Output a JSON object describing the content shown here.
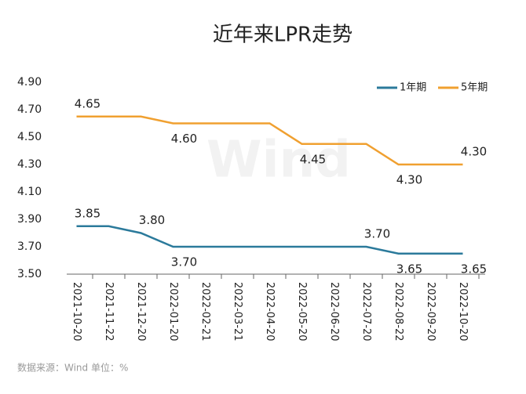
{
  "chart_data": {
    "type": "line",
    "title": "近年来LPR走势",
    "categories": [
      "2021-10-20",
      "2021-11-22",
      "2021-12-20",
      "2022-01-20",
      "2022-02-21",
      "2022-03-21",
      "2022-04-20",
      "2022-05-20",
      "2022-06-20",
      "2022-07-20",
      "2022-08-22",
      "2022-09-20",
      "2022-10-20"
    ],
    "series": [
      {
        "name": "1年期",
        "color": "#2b7a9b",
        "values": [
          3.85,
          3.85,
          3.8,
          3.7,
          3.7,
          3.7,
          3.7,
          3.7,
          3.7,
          3.7,
          3.65,
          3.65,
          3.65
        ],
        "value_labels": [
          "3.85",
          null,
          "3.80",
          "3.70",
          null,
          null,
          null,
          null,
          null,
          "3.70",
          "3.65",
          null,
          "3.65"
        ]
      },
      {
        "name": "5年期",
        "color": "#f0a030",
        "values": [
          4.65,
          4.65,
          4.65,
          4.6,
          4.6,
          4.6,
          4.6,
          4.45,
          4.45,
          4.45,
          4.3,
          4.3,
          4.3
        ],
        "value_labels": [
          "4.65",
          null,
          null,
          "4.60",
          null,
          null,
          null,
          "4.45",
          null,
          null,
          "4.30",
          null,
          "4.30"
        ]
      }
    ],
    "ylim": [
      3.5,
      4.9
    ],
    "yticks": [
      {
        "value": 3.5,
        "label": "3.50"
      },
      {
        "value": 3.7,
        "label": "3.70"
      },
      {
        "value": 3.9,
        "label": "3.90"
      },
      {
        "value": 4.1,
        "label": "4.10"
      },
      {
        "value": 4.3,
        "label": "4.30"
      },
      {
        "value": 4.5,
        "label": "4.50"
      },
      {
        "value": 4.7,
        "label": "4.70"
      },
      {
        "value": 4.9,
        "label": "4.90"
      }
    ],
    "legend": "top-right",
    "watermark": "Wind",
    "source": "数据来源：Wind   单位：%"
  }
}
